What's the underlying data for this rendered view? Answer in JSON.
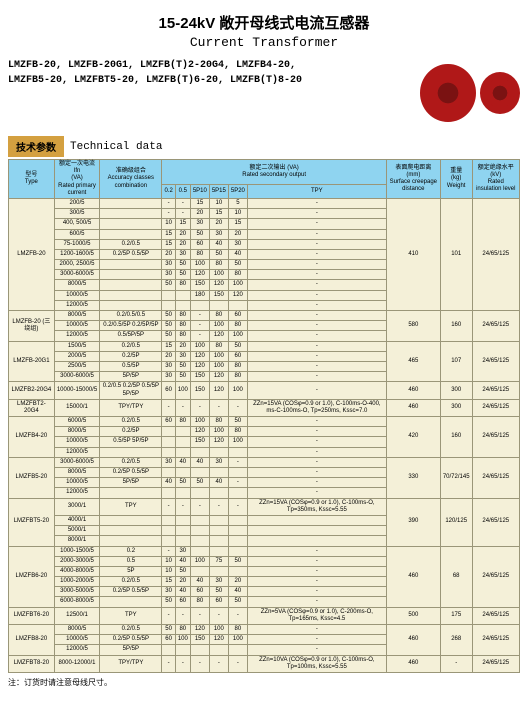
{
  "title": {
    "cn": "15-24kV 敞开母线式电流互感器",
    "en": "Current Transformer"
  },
  "models": [
    "LMZFB-20, LMZFB-20G1, LMZFB(T)2-20G4, LMZFB4-20,",
    "LMZFB5-20, LMZFBT5-20, LMZFB(T)6-20, LMZFB(T)8-20"
  ],
  "tech": {
    "cn": "技术参数",
    "en": "Technical data"
  },
  "headers": {
    "type": {
      "cn": "型号",
      "en": "Type"
    },
    "primary": {
      "cn": "额定一次电流 Ifn",
      "unit": "(VA)",
      "en": "Rated primary current"
    },
    "accuracy": {
      "cn": "准确级组合",
      "en": "Accuracy classes combination"
    },
    "secondary": {
      "cn": "额定二次输出 (VA)",
      "en": "Rated secondary output"
    },
    "creepage": {
      "cn": "表面爬电距离",
      "unit": "(mm)",
      "en": "Surface creepage distance"
    },
    "weight": {
      "cn": "重量",
      "unit": "(kg)",
      "en": "Weight"
    },
    "insulation": {
      "cn": "额定绝缘水平",
      "unit": "(kV)",
      "en": "Rated insulation level"
    }
  },
  "sub": [
    "0.2",
    "0.5",
    "5P10",
    "5P15",
    "5P20",
    "TPY"
  ],
  "groups": [
    {
      "type": "LMZFB-20",
      "creep": "410",
      "weight": "101",
      "ins": "24/65/125",
      "rows": [
        {
          "p": "200/5",
          "a": "",
          "v": [
            "-",
            "-",
            "15",
            "10",
            "5",
            "-"
          ]
        },
        {
          "p": "300/5",
          "a": "",
          "v": [
            "-",
            "-",
            "20",
            "15",
            "10",
            "-"
          ]
        },
        {
          "p": "400, 500/5",
          "a": "",
          "v": [
            "10",
            "15",
            "30",
            "20",
            "15",
            "-"
          ]
        },
        {
          "p": "600/5",
          "a": "",
          "v": [
            "15",
            "20",
            "50",
            "30",
            "20",
            "-"
          ]
        },
        {
          "p": "75-1000/5",
          "a": "0.2/0.5",
          "v": [
            "15",
            "20",
            "60",
            "40",
            "30",
            "-"
          ]
        },
        {
          "p": "1200-1600/5",
          "a": "0.2/5P 0.5/5P",
          "v": [
            "20",
            "30",
            "80",
            "50",
            "40",
            "-"
          ]
        },
        {
          "p": "2000, 2500/5",
          "a": "",
          "v": [
            "30",
            "50",
            "100",
            "80",
            "50",
            "-"
          ]
        },
        {
          "p": "3000-6000/5",
          "a": "",
          "v": [
            "30",
            "50",
            "120",
            "100",
            "80",
            "-"
          ]
        },
        {
          "p": "8000/5",
          "a": "",
          "v": [
            "50",
            "80",
            "150",
            "120",
            "100",
            "-"
          ]
        },
        {
          "p": "10000/5",
          "a": "",
          "v": [
            "",
            "",
            "180",
            "150",
            "120",
            "-"
          ]
        },
        {
          "p": "12000/5",
          "a": "",
          "v": [
            "",
            "",
            "",
            "",
            "",
            "-"
          ]
        }
      ]
    },
    {
      "type": "LMZFB-20 (三绕组)",
      "creep": "580",
      "weight": "160",
      "ins": "24/65/125",
      "rows": [
        {
          "p": "8000/5",
          "a": "0.2/0.5/0.5",
          "v": [
            "50",
            "80",
            "-",
            "80",
            "60",
            "-"
          ]
        },
        {
          "p": "10000/5",
          "a": "0.2/0.5/5P 0.2/5P/5P",
          "v": [
            "50",
            "80",
            "-",
            "100",
            "80",
            "-"
          ]
        },
        {
          "p": "12000/5",
          "a": "0.5/5P/5P",
          "v": [
            "50",
            "80",
            "-",
            "120",
            "100",
            "-"
          ]
        }
      ]
    },
    {
      "type": "LMZFB-20G1",
      "creep": "465",
      "weight": "107",
      "ins": "24/65/125",
      "rows": [
        {
          "p": "1500/5",
          "a": "0.2/0.5",
          "v": [
            "15",
            "20",
            "100",
            "80",
            "50",
            "-"
          ]
        },
        {
          "p": "2000/5",
          "a": "0.2/5P",
          "v": [
            "20",
            "30",
            "120",
            "100",
            "60",
            "-"
          ]
        },
        {
          "p": "2500/5",
          "a": "0.5/5P",
          "v": [
            "30",
            "50",
            "120",
            "100",
            "80",
            "-"
          ]
        },
        {
          "p": "3000-6000/5",
          "a": "5P/5P",
          "v": [
            "30",
            "50",
            "150",
            "120",
            "80",
            "-"
          ]
        }
      ]
    },
    {
      "type": "LMZFB2-20G4",
      "creep": "460",
      "weight": "300",
      "ins": "24/65/125",
      "rows": [
        {
          "p": "10000-15000/5",
          "a": "0.2/0.5 0.2/5P 0.5/5P 5P/5P",
          "v": [
            "60",
            "100",
            "150",
            "120",
            "100",
            "-"
          ]
        }
      ]
    },
    {
      "type": "LMZFBT2-20G4",
      "creep": "460",
      "weight": "300",
      "ins": "24/65/125",
      "rows": [
        {
          "p": "15000/1",
          "a": "TPY/TPY",
          "v": [
            "-",
            "-",
            "-",
            "-",
            "-",
            "ZZn=15VA (COSφ=0.9 or 1.0), C-100ms-O-400, ms-C-100ms-O, Tp=250ms, Kssc=7.0"
          ]
        }
      ]
    },
    {
      "type": "LMZFB4-20",
      "creep": "420",
      "weight": "160",
      "ins": "24/65/125",
      "rows": [
        {
          "p": "6000/5",
          "a": "0.2/0.5",
          "v": [
            "60",
            "80",
            "100",
            "80",
            "50",
            "-"
          ]
        },
        {
          "p": "8000/5",
          "a": "0.2/5P",
          "v": [
            "",
            "",
            "120",
            "100",
            "80",
            "-"
          ]
        },
        {
          "p": "10000/5",
          "a": "0.5/5P 5P/5P",
          "v": [
            "",
            "",
            "150",
            "120",
            "100",
            "-"
          ]
        },
        {
          "p": "12000/5",
          "a": "",
          "v": [
            "",
            "",
            "",
            "",
            "",
            "-"
          ]
        }
      ]
    },
    {
      "type": "LMZFB5-20",
      "creep": "330",
      "weight": "70/72/145",
      "ins": "24/65/125",
      "rows": [
        {
          "p": "3000-6000/5",
          "a": "0.2/0.5",
          "v": [
            "30",
            "40",
            "40",
            "30",
            "-",
            "-"
          ]
        },
        {
          "p": "8000/5",
          "a": "0.2/5P 0.5/5P",
          "v": [
            "",
            "",
            "",
            "",
            "",
            "-"
          ]
        },
        {
          "p": "10000/5",
          "a": "5P/5P",
          "v": [
            "40",
            "50",
            "50",
            "40",
            "-",
            "-"
          ]
        },
        {
          "p": "12000/5",
          "a": "",
          "v": [
            "",
            "",
            "",
            "",
            "",
            "-"
          ]
        }
      ]
    },
    {
      "type": "LMZFBT5-20",
      "creep": "390",
      "weight": "120/125",
      "ins": "24/65/125",
      "rows": [
        {
          "p": "3000/1",
          "a": "TPY",
          "v": [
            "-",
            "-",
            "-",
            "-",
            "-",
            "ZZn=15VA (COSφ=0.9 or 1.0), C-100ms-O, Tp=350ms, Kssc=5.55"
          ]
        },
        {
          "p": "4000/1",
          "a": "",
          "v": [
            "",
            "",
            "",
            "",
            "",
            ""
          ]
        },
        {
          "p": "5000/1",
          "a": "",
          "v": [
            "",
            "",
            "",
            "",
            "",
            ""
          ]
        },
        {
          "p": "8000/1",
          "a": "",
          "v": [
            "",
            "",
            "",
            "",
            "",
            ""
          ]
        }
      ]
    },
    {
      "type": "LMZFB6-20",
      "creep": "460",
      "weight": "68",
      "ins": "24/65/125",
      "rows": [
        {
          "p": "1000-1500/5",
          "a": "0.2",
          "v": [
            "-",
            "30",
            "",
            "",
            "",
            "-"
          ]
        },
        {
          "p": "2000-3000/5",
          "a": "0.5",
          "v": [
            "10",
            "40",
            "100",
            "75",
            "50",
            "-"
          ]
        },
        {
          "p": "4000-8000/5",
          "a": "5P",
          "v": [
            "10",
            "50",
            "",
            "",
            "",
            "-"
          ]
        },
        {
          "p": "1000-2000/5",
          "a": "0.2/0.5",
          "v": [
            "15",
            "20",
            "40",
            "30",
            "20",
            "-"
          ]
        },
        {
          "p": "3000-5000/5",
          "a": "0.2/5P 0.5/5P",
          "v": [
            "30",
            "40",
            "60",
            "50",
            "40",
            "-"
          ]
        },
        {
          "p": "6000-8000/5",
          "a": "",
          "v": [
            "50",
            "60",
            "80",
            "60",
            "50",
            "-"
          ]
        }
      ]
    },
    {
      "type": "LMZFBT6-20",
      "creep": "500",
      "weight": "175",
      "ins": "24/65/125",
      "rows": [
        {
          "p": "12500/1",
          "a": "TPY",
          "v": [
            "-",
            "-",
            "-",
            "-",
            "-",
            "ZZn=5VA (COSφ=0.9 or 1.0), C-200ms-O, Tp=165ms, Kssc=4.5"
          ]
        }
      ]
    },
    {
      "type": "LMZFB8-20",
      "creep": "460",
      "weight": "268",
      "ins": "24/65/125",
      "rows": [
        {
          "p": "8000/5",
          "a": "0.2/0.5",
          "v": [
            "50",
            "80",
            "120",
            "100",
            "80",
            "-"
          ]
        },
        {
          "p": "10000/5",
          "a": "0.2/5P 0.5/5P",
          "v": [
            "60",
            "100",
            "150",
            "120",
            "100",
            "-"
          ]
        },
        {
          "p": "12000/5",
          "a": "5P/5P",
          "v": [
            "",
            "",
            "",
            "",
            "",
            "-"
          ]
        }
      ]
    },
    {
      "type": "LMZFBT8-20",
      "creep": "460",
      "weight": "-",
      "ins": "24/65/125",
      "rows": [
        {
          "p": "8000-12000/1",
          "a": "TPY/TPY",
          "v": [
            "-",
            "-",
            "-",
            "-",
            "-",
            "ZZn=10VA (COSφ=0.9 or 1.0), C-100ms-O, Tp=100ms, Kssc=5.55"
          ]
        }
      ]
    }
  ],
  "footer": "注：订货时请注意母线尺寸。",
  "colors": {
    "header_bg": "#8fd4f0",
    "body_bg": "#f4f0d8",
    "border": "#9a9678",
    "tab": "#d4a040",
    "ring": "#b01818"
  }
}
